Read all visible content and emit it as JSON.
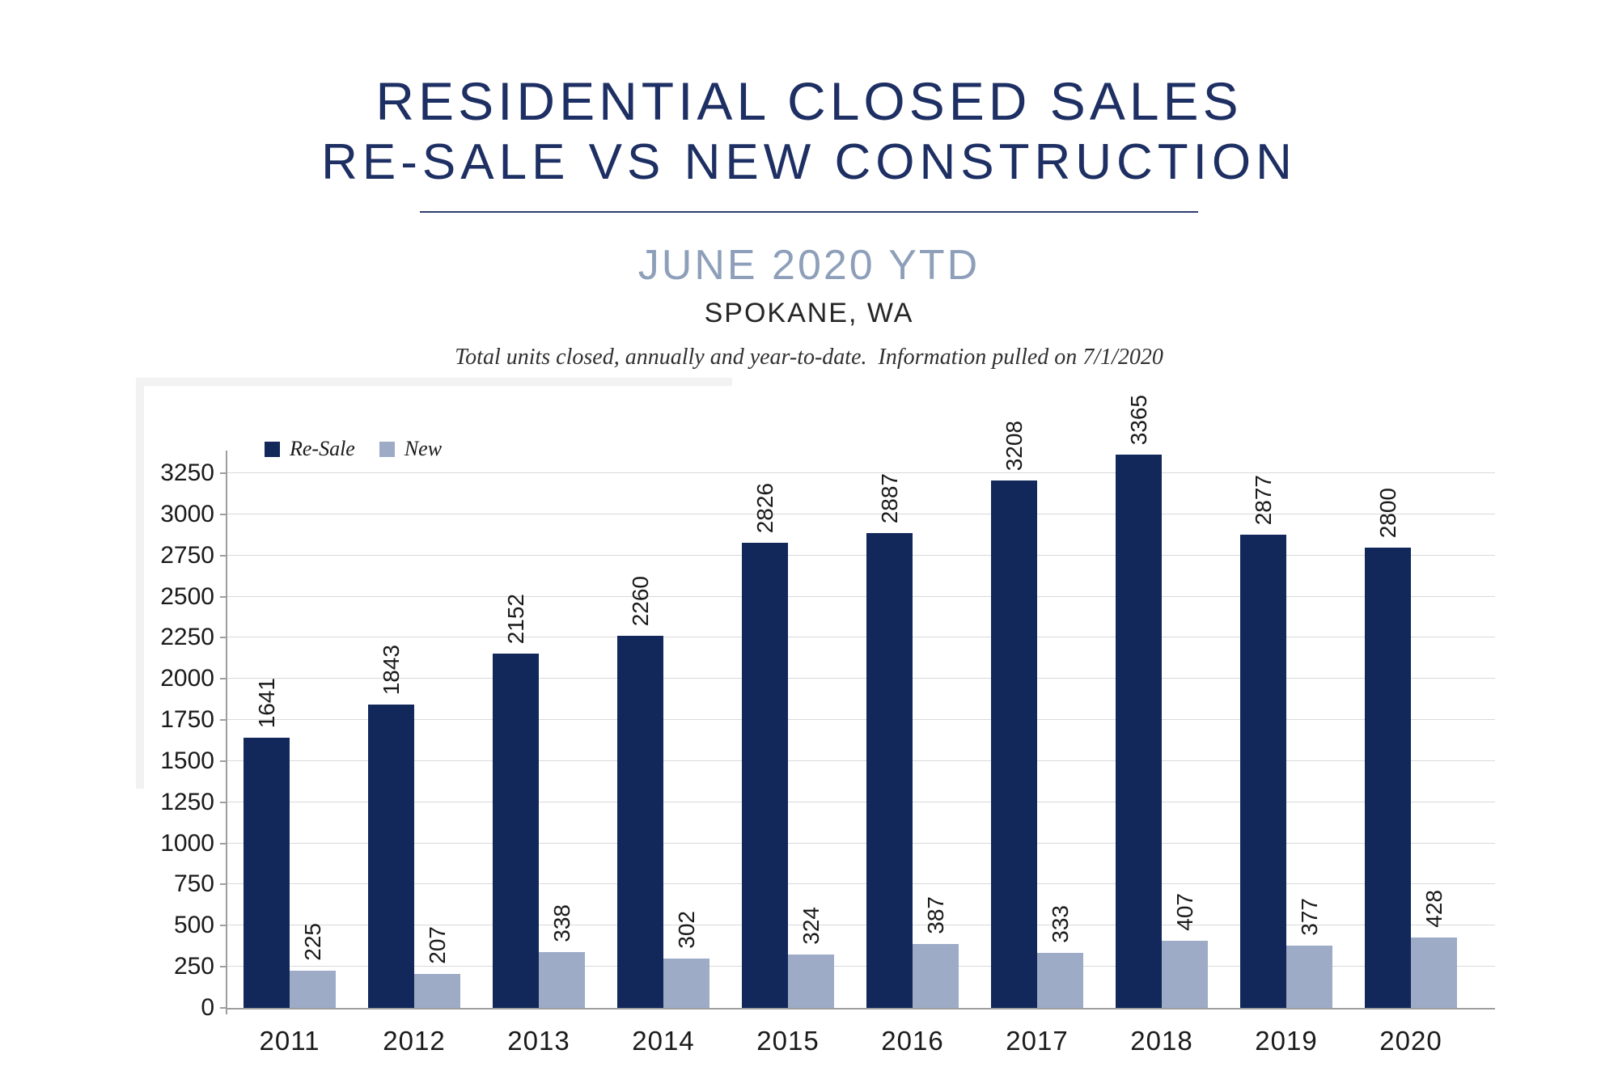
{
  "header": {
    "title": "RESIDENTIAL CLOSED SALES",
    "subtitle": "RE-SALE VS NEW CONSTRUCTION",
    "period": "JUNE 2020 YTD",
    "location": "SPOKANE, WA",
    "note": "Total units closed, annually and year-to-date.  Information pulled on 7/1/2020"
  },
  "legend": [
    {
      "label": "Re-Sale",
      "color": "#12285a"
    },
    {
      "label": "New",
      "color": "#9dabc6"
    }
  ],
  "colors": {
    "title_navy": "#1d2f63",
    "divider": "#2e3f70",
    "period_blue": "#8d9fb9",
    "text_dark": "#262626",
    "label_text": "#1a1a1a",
    "gridline": "#d9d9d9",
    "axis": "#9e9e9e",
    "resale_bar": "#12285a",
    "new_bar": "#9dabc6"
  },
  "chart_data": {
    "type": "bar",
    "title": "RESIDENTIAL CLOSED SALES — RE-SALE VS NEW CONSTRUCTION, JUNE 2020 YTD, SPOKANE, WA",
    "categories": [
      "2011",
      "2012",
      "2013",
      "2014",
      "2015",
      "2016",
      "2017",
      "2018",
      "2019",
      "2020"
    ],
    "series": [
      {
        "name": "Re-Sale",
        "color": "#12285a",
        "values": [
          1641,
          1843,
          2152,
          2260,
          2826,
          2887,
          3208,
          3365,
          2877,
          2800
        ]
      },
      {
        "name": "New",
        "color": "#9dabc6",
        "values": [
          225,
          207,
          338,
          302,
          324,
          387,
          333,
          407,
          377,
          428
        ]
      }
    ],
    "xlabel": "",
    "ylabel": "",
    "ylim": [
      0,
      3250
    ],
    "ytick_interval": 250,
    "grid": true,
    "legend_position": "top-left-inside",
    "data_labels": "rotated-90-above-bars"
  }
}
